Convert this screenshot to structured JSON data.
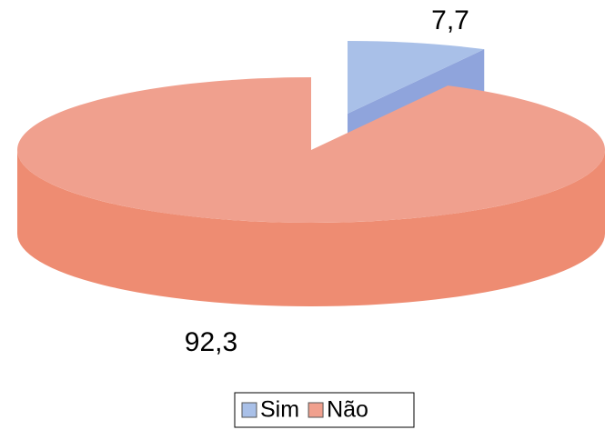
{
  "chart_data": {
    "type": "pie",
    "categories": [
      "Sim",
      "Não"
    ],
    "values": [
      7.7,
      92.3
    ],
    "value_labels": [
      "7,7",
      "92,3"
    ],
    "colors": [
      "#a9c0e8",
      "#f0a08e"
    ],
    "side_colors": [
      "#8fa4dc",
      "#ee8c72"
    ],
    "legend": "bottom"
  }
}
